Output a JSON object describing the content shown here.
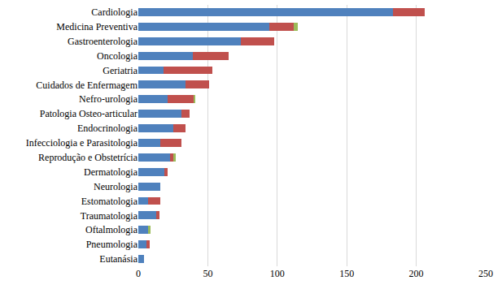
{
  "chart_data": {
    "type": "bar",
    "orientation": "horizontal",
    "stacked": true,
    "grid": true,
    "categories": [
      "Cardiologia",
      "Medicina Preventiva",
      "Gastroenterologia",
      "Oncologia",
      "Geriatria",
      "Cuidados de Enfermagem",
      "Nefro-urologia",
      "Patologia Osteo-articular",
      "Endocrinologia",
      "Infecciologia e Parasitologia",
      "Reprodução e Obstetrícia",
      "Dermatologia",
      "Neurologia",
      "Estomatologia",
      "Traumatologia",
      "Oftalmologia",
      "Pneumologia",
      "Eutanásia"
    ],
    "series": [
      {
        "color": "#4f81bd",
        "values": [
          183,
          94,
          74,
          39,
          18,
          34,
          21,
          31,
          25,
          16,
          23,
          19,
          16,
          7,
          13,
          7,
          6,
          4
        ]
      },
      {
        "color": "#c0504d",
        "values": [
          23,
          18,
          24,
          26,
          35,
          17,
          19,
          6,
          9,
          15,
          2,
          2,
          0,
          9,
          2,
          0,
          2,
          0
        ]
      },
      {
        "color": "#9bbb59",
        "values": [
          0,
          3,
          0,
          0,
          0,
          0,
          1,
          0,
          0,
          0,
          2,
          0,
          0,
          0,
          0,
          2,
          0,
          0
        ]
      }
    ],
    "xlim": [
      0,
      250
    ],
    "xticks": [
      0,
      50,
      100,
      150,
      200,
      250
    ]
  }
}
